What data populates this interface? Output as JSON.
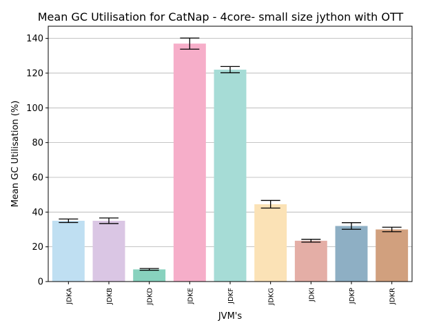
{
  "chart_data": {
    "type": "bar",
    "title": "Mean GC Utilisation for CatNap - 4core- small size jython with OTT",
    "xlabel": "JVM's",
    "ylabel": "Mean GC Utilisation (%)",
    "categories": [
      "JDKA",
      "JDKB",
      "JDKD",
      "JDKE",
      "JDKF",
      "JDKG",
      "JDKI",
      "JDKP",
      "JDKR"
    ],
    "values": [
      35.0,
      35.0,
      7.0,
      137.0,
      122.0,
      44.5,
      23.5,
      32.0,
      30.0
    ],
    "errors": [
      1.0,
      1.6,
      0.5,
      3.2,
      1.8,
      2.2,
      0.8,
      1.9,
      1.3
    ],
    "colors": [
      "#bfdff2",
      "#dac6e4",
      "#88d2be",
      "#f6aec9",
      "#a6dcd6",
      "#fbe2b6",
      "#e4aea6",
      "#8eafc4",
      "#d1a07e"
    ],
    "ylim": [
      0,
      147
    ],
    "yticks": [
      0,
      20,
      40,
      60,
      80,
      100,
      120,
      140
    ],
    "grid": "y"
  }
}
